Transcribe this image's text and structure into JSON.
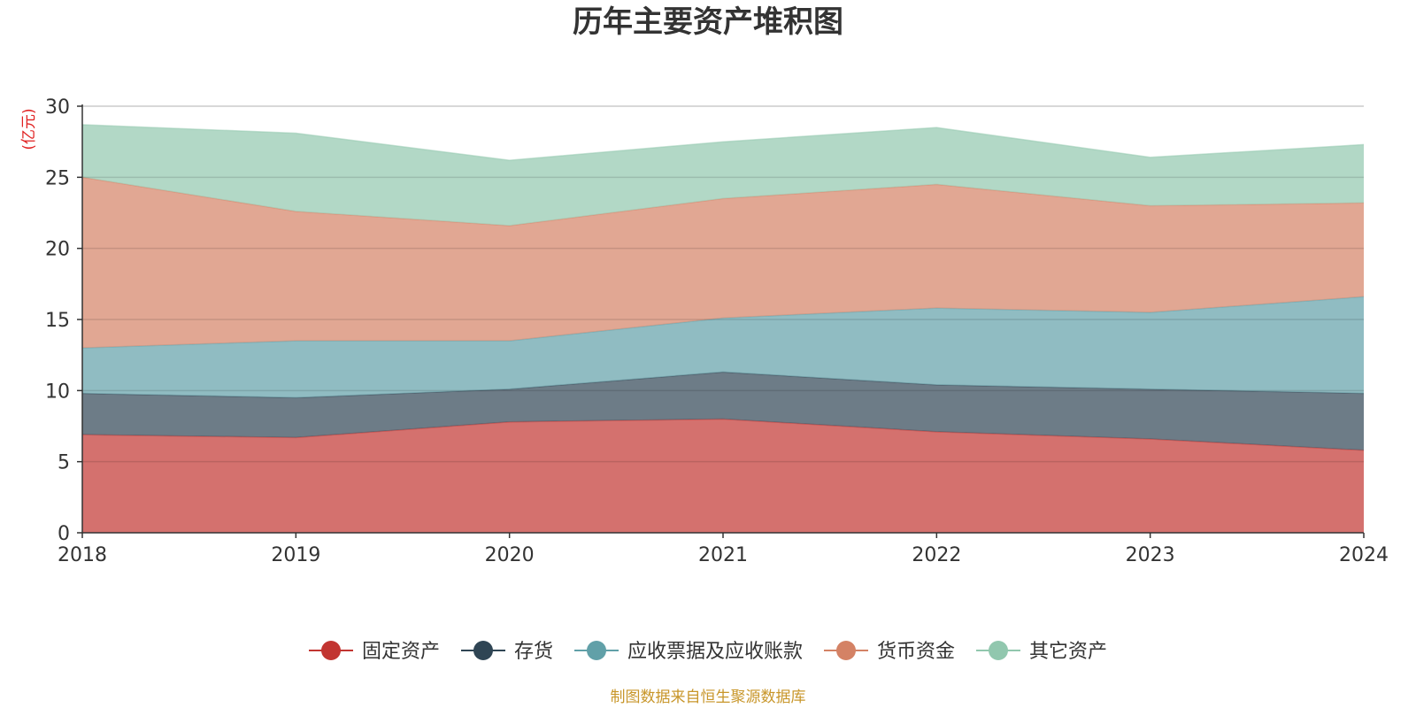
{
  "chart_data": {
    "type": "area",
    "stacked": true,
    "title": "历年主要资产堆积图",
    "unit_label": "(亿元)",
    "x": [
      "2018",
      "2019",
      "2020",
      "2021",
      "2022",
      "2023",
      "2024"
    ],
    "ylim": [
      0,
      30
    ],
    "yticks": [
      0,
      5,
      10,
      15,
      20,
      25,
      30
    ],
    "grid": true,
    "legend_position": "bottom-center",
    "series": [
      {
        "name": "固定资产",
        "color": "#c23531",
        "values": [
          6.9,
          6.7,
          7.8,
          8.0,
          7.1,
          6.6,
          5.8
        ]
      },
      {
        "name": "存货",
        "color": "#2f4554",
        "values": [
          2.9,
          2.8,
          2.3,
          3.3,
          3.3,
          3.5,
          4.0
        ]
      },
      {
        "name": "应收票据及应收账款",
        "color": "#61a0a8",
        "values": [
          3.2,
          4.0,
          3.4,
          3.8,
          5.4,
          5.4,
          6.8
        ]
      },
      {
        "name": "货币资金",
        "color": "#d48265",
        "values": [
          12.0,
          9.1,
          8.1,
          8.4,
          8.7,
          7.5,
          6.6
        ]
      },
      {
        "name": "其它资产",
        "color": "#91c7ae",
        "values": [
          3.7,
          5.5,
          4.6,
          4.0,
          4.0,
          3.4,
          4.1
        ]
      }
    ]
  },
  "source_note": "制图数据来自恒生聚源数据库"
}
